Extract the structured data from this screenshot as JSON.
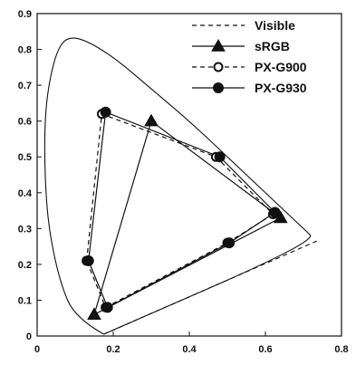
{
  "colors": {
    "ink": "#111111",
    "background": "#ffffff"
  },
  "chart_data": {
    "type": "scatter",
    "title": "",
    "xlabel": "",
    "ylabel": "",
    "xlim": [
      0,
      0.8
    ],
    "ylim": [
      0,
      0.9
    ],
    "grid": false,
    "legend_position": "top-right",
    "x_ticks": [
      "0",
      "0.2",
      "0.4",
      "0.6",
      "0.8"
    ],
    "y_ticks": [
      "0",
      "0.1",
      "0.2",
      "0.3",
      "0.4",
      "0.5",
      "0.6",
      "0.7",
      "0.8",
      "0.9"
    ],
    "series": [
      {
        "name": "Visible",
        "line_style": "dashed",
        "marker": "none",
        "x": [
          0.175,
          0.1,
          0.06,
          0.03,
          0.02,
          0.02,
          0.03,
          0.05,
          0.075,
          0.12,
          0.2,
          0.3,
          0.4,
          0.5,
          0.6,
          0.7,
          0.735,
          0.175
        ],
        "y": [
          0.005,
          0.05,
          0.15,
          0.3,
          0.45,
          0.6,
          0.7,
          0.79,
          0.833,
          0.83,
          0.78,
          0.69,
          0.6,
          0.5,
          0.4,
          0.3,
          0.265,
          0.005
        ]
      },
      {
        "name": "sRGB",
        "line_style": "solid",
        "marker": "triangle",
        "x": [
          0.64,
          0.3,
          0.15,
          0.64
        ],
        "y": [
          0.33,
          0.6,
          0.06,
          0.33
        ]
      },
      {
        "name": "PX-G900",
        "line_style": "dashed",
        "marker": "open-circle",
        "x": [
          0.13,
          0.17,
          0.47,
          0.62,
          0.5,
          0.18,
          0.13
        ],
        "y": [
          0.21,
          0.62,
          0.5,
          0.34,
          0.26,
          0.08,
          0.21
        ]
      },
      {
        "name": "PX-G930",
        "line_style": "solid",
        "marker": "filled-circle",
        "x": [
          0.135,
          0.18,
          0.48,
          0.625,
          0.505,
          0.185,
          0.135
        ],
        "y": [
          0.21,
          0.625,
          0.5,
          0.345,
          0.26,
          0.08,
          0.21
        ]
      }
    ]
  }
}
